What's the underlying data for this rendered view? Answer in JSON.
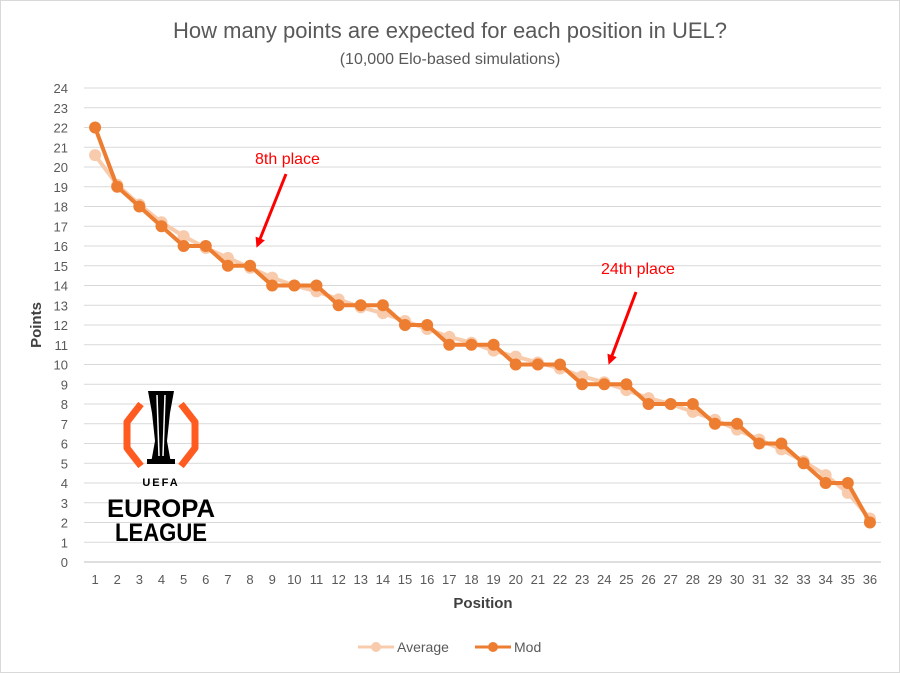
{
  "chart_data": {
    "type": "line",
    "title": "How many points are expected for each position in UEL?",
    "subtitle": "(10,000 Elo-based simulations)",
    "xlabel": "Position",
    "ylabel": "Points",
    "x": [
      1,
      2,
      3,
      4,
      5,
      6,
      7,
      8,
      9,
      10,
      11,
      12,
      13,
      14,
      15,
      16,
      17,
      18,
      19,
      20,
      21,
      22,
      23,
      24,
      25,
      26,
      27,
      28,
      29,
      30,
      31,
      32,
      33,
      34,
      35,
      36
    ],
    "ylim": [
      0,
      24
    ],
    "yticks": [
      0,
      1,
      2,
      3,
      4,
      5,
      6,
      7,
      8,
      9,
      10,
      11,
      12,
      13,
      14,
      15,
      16,
      17,
      18,
      19,
      20,
      21,
      22,
      23,
      24
    ],
    "grid": true,
    "legend_position": "bottom",
    "series": [
      {
        "name": "Average",
        "color": "#f8cbad",
        "values": [
          20.6,
          19.1,
          18.1,
          17.2,
          16.5,
          15.9,
          15.4,
          14.9,
          14.4,
          14.0,
          13.7,
          13.3,
          12.9,
          12.6,
          12.2,
          11.8,
          11.4,
          11.1,
          10.7,
          10.4,
          10.1,
          9.8,
          9.4,
          9.1,
          8.7,
          8.3,
          8.0,
          7.6,
          7.2,
          6.7,
          6.2,
          5.7,
          5.1,
          4.4,
          3.5,
          2.2
        ]
      },
      {
        "name": "Mod",
        "color": "#ed7d31",
        "values": [
          22,
          19,
          18,
          17,
          16,
          16,
          15,
          15,
          14,
          14,
          14,
          13,
          13,
          13,
          12,
          12,
          11,
          11,
          11,
          10,
          10,
          10,
          9,
          9,
          9,
          8,
          8,
          8,
          7,
          7,
          6,
          6,
          5,
          4,
          4,
          2
        ]
      }
    ],
    "annotations": [
      {
        "text": "8th place",
        "x": 8,
        "y": 15
      },
      {
        "text": "24th place",
        "x": 24,
        "y": 9
      }
    ]
  },
  "logo": {
    "line1": "UEFA",
    "line2": "EUROPA",
    "line3": "LEAGUE"
  }
}
